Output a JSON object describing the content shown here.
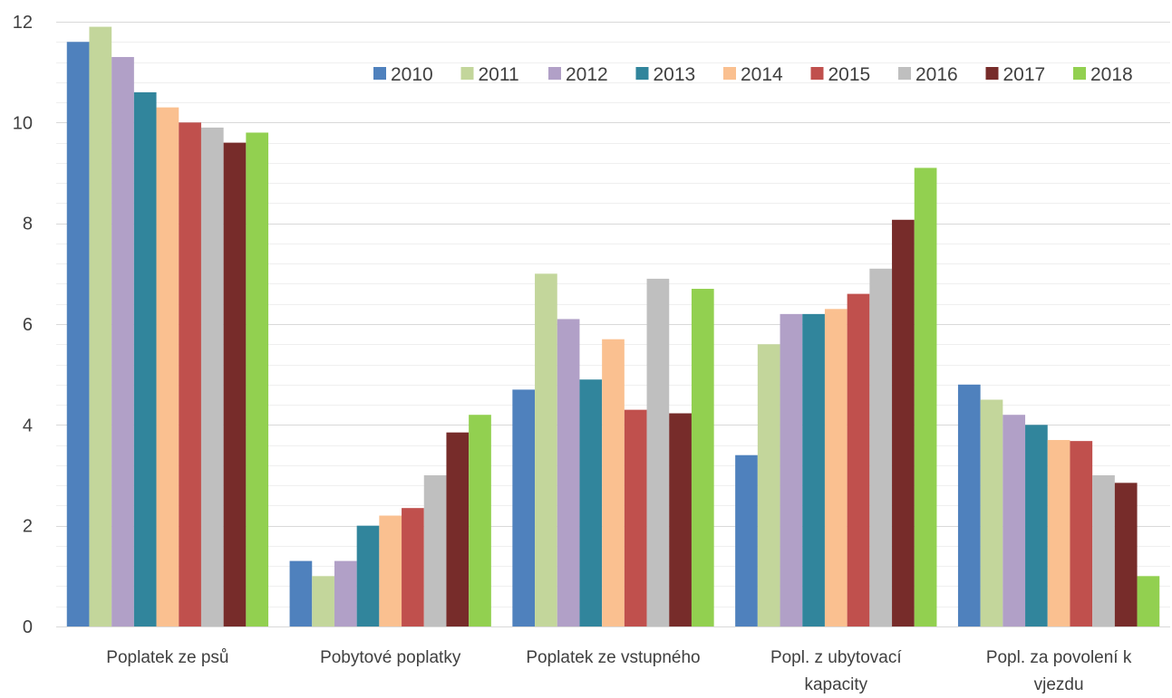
{
  "chart_data": {
    "type": "bar",
    "title": "",
    "xlabel": "",
    "ylabel": "",
    "ylim": [
      0,
      12
    ],
    "yticks": [
      "0",
      "2",
      "4",
      "6",
      "8",
      "10",
      "12"
    ],
    "grid": true,
    "legend_position": "top-right",
    "categories": [
      [
        "Poplatek ze psů"
      ],
      [
        "Pobytové poplatky"
      ],
      [
        "Poplatek ze vstupného"
      ],
      [
        "Popl. z ubytovací",
        "kapacity"
      ],
      [
        "Popl. za povolení k",
        "vjezdu"
      ]
    ],
    "series": [
      {
        "name": "2010",
        "color": "#4F81BD",
        "values": [
          11.6,
          1.3,
          4.7,
          3.4,
          4.8
        ]
      },
      {
        "name": "2011",
        "color": "#C3D69B",
        "values": [
          11.9,
          1.0,
          7.0,
          5.6,
          4.5
        ]
      },
      {
        "name": "2012",
        "color": "#B1A0C7",
        "values": [
          11.3,
          1.3,
          6.1,
          6.2,
          4.2
        ]
      },
      {
        "name": "2013",
        "color": "#31859C",
        "values": [
          10.6,
          2.0,
          4.9,
          6.2,
          4.0
        ]
      },
      {
        "name": "2014",
        "color": "#FAC090",
        "values": [
          10.3,
          2.2,
          5.7,
          6.3,
          3.7
        ]
      },
      {
        "name": "2015",
        "color": "#C0504D",
        "values": [
          10.0,
          2.35,
          4.3,
          6.6,
          3.68
        ]
      },
      {
        "name": "2016",
        "color": "#BFBFBF",
        "values": [
          9.9,
          3.0,
          6.9,
          7.1,
          3.0
        ]
      },
      {
        "name": "2017",
        "color": "#772C2A",
        "values": [
          9.6,
          3.85,
          4.23,
          8.07,
          2.85
        ]
      },
      {
        "name": "2018",
        "color": "#92D050",
        "values": [
          9.8,
          4.2,
          6.7,
          9.1,
          1.0
        ]
      }
    ]
  }
}
